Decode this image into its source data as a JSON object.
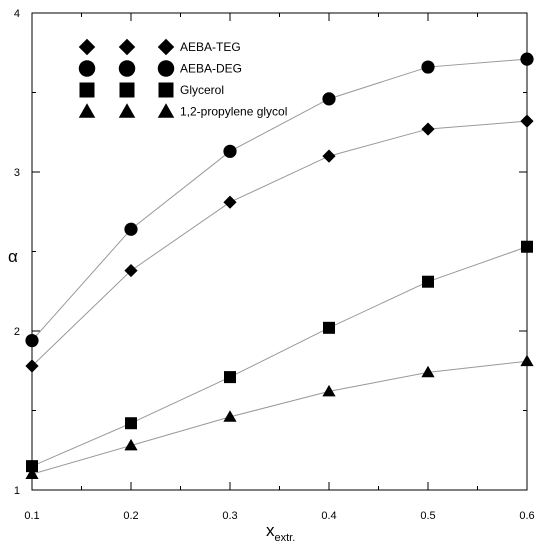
{
  "chart_data": {
    "type": "line",
    "xlabel": "x",
    "xlabel_subscript": "extr.",
    "ylabel": "α",
    "xlim": [
      0.1,
      0.6
    ],
    "ylim": [
      1,
      4
    ],
    "x_ticks": [
      "0.1",
      "0.2",
      "0.3",
      "0.4",
      "0.5",
      "0.6"
    ],
    "y_ticks": [
      "1",
      "2",
      "3",
      "4"
    ],
    "grid": false,
    "legend_position": "top-left",
    "line_color": "#999999",
    "marker_color": "#000000",
    "x": [
      0.1,
      0.2,
      0.3,
      0.4,
      0.5,
      0.6
    ],
    "series": [
      {
        "name": "AEBA-TEG",
        "marker": "diamond",
        "values": [
          1.78,
          2.38,
          2.81,
          3.1,
          3.27,
          3.32
        ]
      },
      {
        "name": "AEBA-DEG",
        "marker": "circle",
        "values": [
          1.94,
          2.64,
          3.13,
          3.46,
          3.66,
          3.71
        ]
      },
      {
        "name": "Glycerol",
        "marker": "square",
        "values": [
          1.15,
          1.42,
          1.71,
          2.02,
          2.31,
          2.53
        ]
      },
      {
        "name": "1,2-propylene glycol",
        "marker": "triangle",
        "values": [
          1.1,
          1.28,
          1.46,
          1.62,
          1.74,
          1.81
        ]
      }
    ]
  }
}
